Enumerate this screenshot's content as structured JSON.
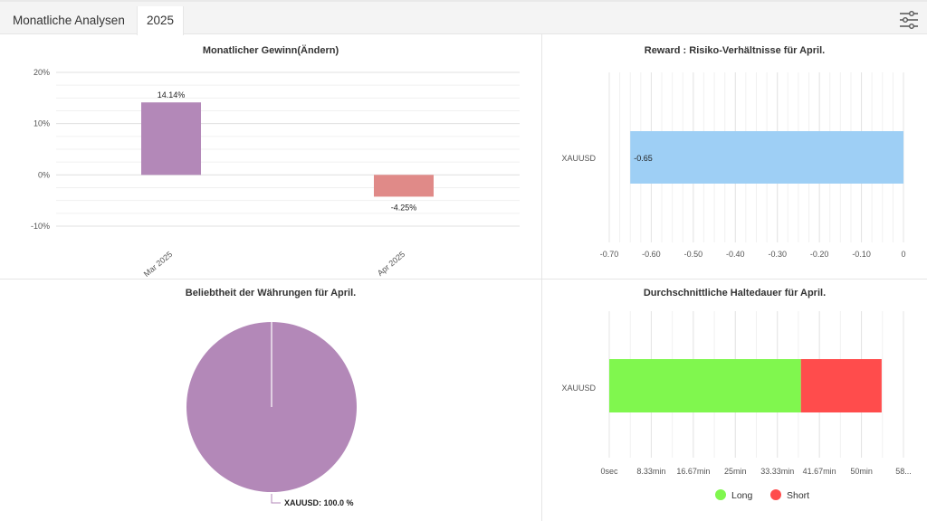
{
  "tabs": [
    {
      "label": "Monatliche Analysen"
    },
    {
      "label": "2025"
    }
  ],
  "settings_icon": "sliders-icon",
  "charts": {
    "monthly": {
      "title": "Monatlicher Gewinn(Ändern)",
      "chart_data": {
        "type": "bar",
        "categories": [
          "Mar 2025",
          "Apr 2025"
        ],
        "values": [
          14.14,
          -4.25
        ],
        "data_labels": [
          "14.14%",
          "-4.25%"
        ],
        "colors": [
          "#b388b8",
          "#e08a88"
        ],
        "y_ticks": [
          "20%",
          "10%",
          "0%",
          "-10%"
        ],
        "ylim": [
          -10,
          20
        ],
        "grid": true
      }
    },
    "reward": {
      "title": "Reward : Risiko-Verhältnisse für April.",
      "chart_data": {
        "type": "bar",
        "orientation": "horizontal",
        "categories": [
          "XAUUSD"
        ],
        "values": [
          -0.65
        ],
        "data_labels": [
          "-0.65"
        ],
        "color": "#9ecff5",
        "x_ticks": [
          "-0.70",
          "-0.60",
          "-0.50",
          "-0.40",
          "-0.30",
          "-0.20",
          "-0.10",
          "0"
        ],
        "xlim": [
          -0.7,
          0
        ],
        "grid": true
      }
    },
    "popularity": {
      "title": "Beliebtheit der Währungen für April.",
      "chart_data": {
        "type": "pie",
        "labels": [
          "XAUUSD"
        ],
        "values": [
          100.0
        ],
        "data_labels": [
          "XAUUSD: 100.0 %"
        ],
        "colors": [
          "#b388b8"
        ]
      }
    },
    "holding": {
      "title": "Durchschnittliche Haltedauer für April.",
      "chart_data": {
        "type": "bar",
        "orientation": "horizontal",
        "stacked": true,
        "categories": [
          "XAUUSD"
        ],
        "series": [
          {
            "name": "Long",
            "values": [
              38
            ],
            "color": "#80f74e"
          },
          {
            "name": "Short",
            "values": [
              16
            ],
            "color": "#ff4c4c"
          }
        ],
        "x_ticks": [
          "0sec",
          "8.33min",
          "16.67min",
          "25min",
          "33.33min",
          "41.67min",
          "50min",
          "58..."
        ],
        "xlim_minutes": [
          0,
          58.33
        ],
        "legend": "bottom",
        "grid": true
      }
    }
  }
}
